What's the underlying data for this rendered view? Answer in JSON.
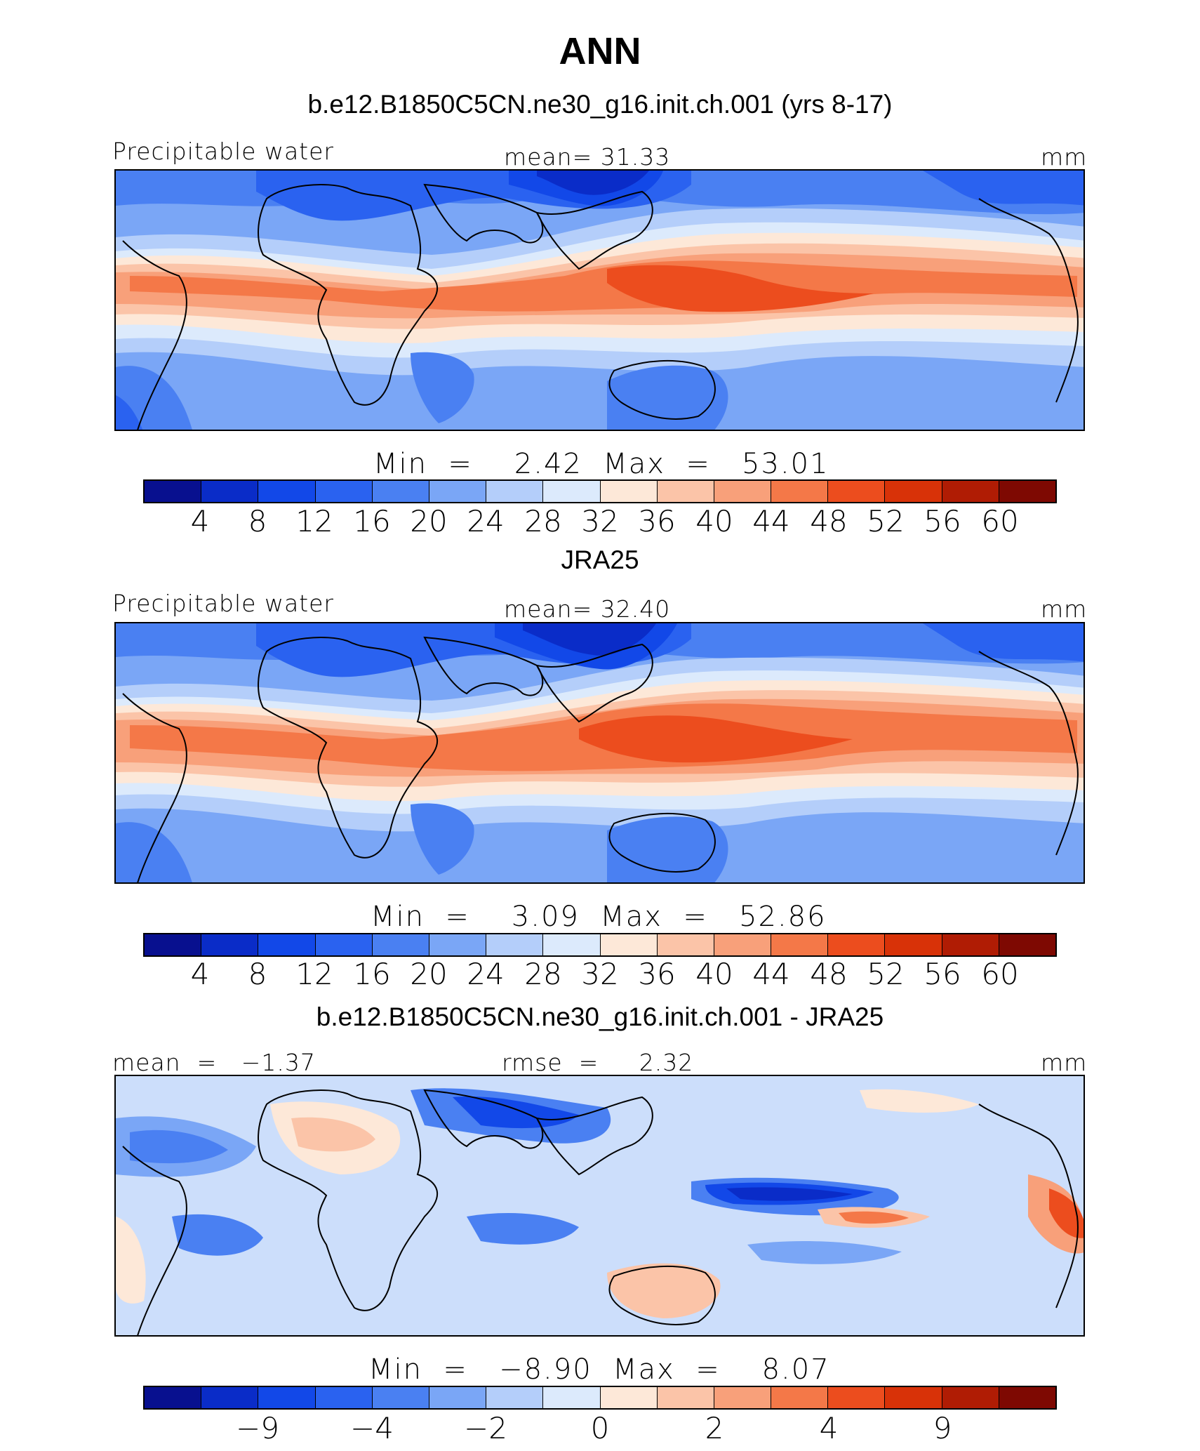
{
  "figure": {
    "title": "ANN",
    "colors": [
      "#08108f",
      "#0a2cc8",
      "#1248e8",
      "#2a62f0",
      "#4a80f2",
      "#7aa6f6",
      "#b4cefa",
      "#dceafc",
      "#fde8d8",
      "#fbc4a8",
      "#f8a07a",
      "#f47848",
      "#ec4d1e",
      "#d83208",
      "#b01c04",
      "#7e0902"
    ]
  },
  "panels": [
    {
      "subtitle": "b.e12.B1850C5CN.ne30_g16.init.ch.001 (yrs 8-17)",
      "left_label": "Precipitable water",
      "center_label": "mean=   31.33",
      "units": "mm",
      "stats": "Min  =    2.42  Max  =   53.01",
      "ticks": [
        "4",
        "8",
        "12",
        "16",
        "20",
        "24",
        "28",
        "32",
        "36",
        "40",
        "44",
        "48",
        "52",
        "56",
        "60"
      ]
    },
    {
      "subtitle": "JRA25",
      "left_label": "Precipitable water",
      "center_label": "mean=   32.40",
      "units": "mm",
      "stats": "Min  =    3.09  Max  =   52.86",
      "ticks": [
        "4",
        "8",
        "12",
        "16",
        "20",
        "24",
        "28",
        "32",
        "36",
        "40",
        "44",
        "48",
        "52",
        "56",
        "60"
      ]
    },
    {
      "subtitle": "b.e12.B1850C5CN.ne30_g16.init.ch.001 - JRA25",
      "left_label": "mean  =   −1.37",
      "center_label": "rmse  =     2.32",
      "units": "mm",
      "stats": "Min  =   −8.90  Max  =    8.07",
      "ticks": [
        "−9",
        "−4",
        "−2",
        "0",
        "2",
        "4",
        "9"
      ]
    }
  ]
}
